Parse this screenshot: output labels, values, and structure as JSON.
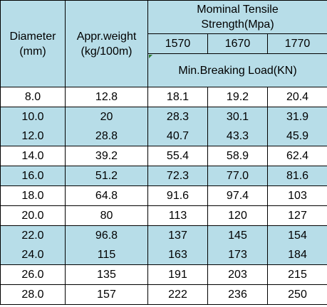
{
  "header": {
    "diameter": "Diameter",
    "diameter_unit": "(mm)",
    "weight": "Appr.weight",
    "weight_unit": "(kg/100m)",
    "tensile_line1": "Mominal Tensile",
    "tensile_line2": "Strength(Mpa)",
    "grades": [
      "1570",
      "1670",
      "1770"
    ],
    "load_label": "Min.Breaking Load(KN)"
  },
  "rows": [
    {
      "diameter": "8.0",
      "weight": "12.8",
      "g1570": "18.1",
      "g1670": "19.2",
      "g1770": "20.4"
    },
    {
      "diameter": "10.0",
      "weight": "20",
      "g1570": "28.3",
      "g1670": "30.1",
      "g1770": "31.9"
    },
    {
      "diameter": "12.0",
      "weight": "28.8",
      "g1570": "40.7",
      "g1670": "43.3",
      "g1770": "45.9"
    },
    {
      "diameter": "14.0",
      "weight": "39.2",
      "g1570": "55.4",
      "g1670": "58.9",
      "g1770": "62.4"
    },
    {
      "diameter": "16.0",
      "weight": "51.2",
      "g1570": "72.3",
      "g1670": "77.0",
      "g1770": "81.6"
    },
    {
      "diameter": "18.0",
      "weight": "64.8",
      "g1570": "91.6",
      "g1670": "97.4",
      "g1770": "103"
    },
    {
      "diameter": "20.0",
      "weight": "80",
      "g1570": "113",
      "g1670": "120",
      "g1770": "127"
    },
    {
      "diameter": "22.0",
      "weight": "96.8",
      "g1570": "137",
      "g1670": "145",
      "g1770": "154"
    },
    {
      "diameter": "24.0",
      "weight": "115",
      "g1570": "163",
      "g1670": "173",
      "g1770": "184"
    },
    {
      "diameter": "26.0",
      "weight": "135",
      "g1570": "191",
      "g1670": "203",
      "g1770": "215"
    },
    {
      "diameter": "28.0",
      "weight": "157",
      "g1570": "222",
      "g1670": "236",
      "g1770": "250"
    }
  ],
  "colors": {
    "row_highlight": "#b7dde8",
    "border": "#000000",
    "cell_marker": "#2e7d32"
  }
}
